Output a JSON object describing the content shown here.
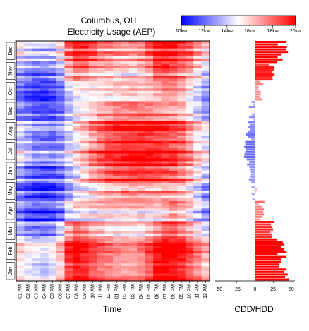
{
  "chart_data": [
    {
      "type": "heatmap",
      "title": "Columbus, OH",
      "subtitle": "Electricity Usage (AEP)",
      "xlabel": "Time",
      "ylabel": "",
      "x_ticks": [
        "01 AM",
        "02 AM",
        "03 AM",
        "04 AM",
        "05 AM",
        "06 AM",
        "07 AM",
        "08 AM",
        "09 AM",
        "10 AM",
        "11 AM",
        "12 PM",
        "01 PM",
        "02 PM",
        "03 PM",
        "04 PM",
        "05 PM",
        "06 PM",
        "07 PM",
        "08 PM",
        "09 PM",
        "10 PM",
        "11 PM",
        "12 AM"
      ],
      "y_ticks": [
        "Jan",
        "Feb",
        "Mar",
        "Apr",
        "May",
        "Jun",
        "Jul",
        "Aug",
        "Sep",
        "Oct",
        "Nov",
        "Dec"
      ],
      "colorbar": {
        "ticks": [
          "10kw",
          "12kw",
          "14kw",
          "16kw",
          "18kw",
          "20kw"
        ],
        "range": [
          10,
          20
        ],
        "low_color": "#0000ff",
        "mid_color": "#ffffff",
        "high_color": "#ff0000"
      },
      "monthly_profile_kw": {
        "Jan": [
          15.0,
          14.2,
          13.8,
          13.6,
          14.0,
          15.4,
          18.2,
          19.2,
          18.8,
          18.0,
          17.4,
          17.0,
          16.8,
          16.6,
          16.6,
          16.9,
          17.8,
          19.4,
          19.6,
          19.2,
          18.6,
          17.8,
          16.8,
          15.8
        ],
        "Feb": [
          15.0,
          14.3,
          13.9,
          13.7,
          14.1,
          15.5,
          18.4,
          19.3,
          18.8,
          18.0,
          17.4,
          16.9,
          16.6,
          16.4,
          16.4,
          16.8,
          17.6,
          18.9,
          19.6,
          19.4,
          18.8,
          18.0,
          16.9,
          15.8
        ],
        "Mar": [
          14.0,
          13.4,
          13.0,
          12.9,
          13.2,
          14.4,
          17.0,
          18.2,
          17.8,
          17.0,
          16.6,
          16.2,
          16.0,
          15.9,
          15.8,
          16.0,
          16.6,
          17.4,
          18.4,
          18.6,
          18.0,
          17.0,
          15.9,
          14.8
        ],
        "Apr": [
          12.6,
          12.0,
          11.7,
          11.6,
          11.8,
          12.6,
          14.4,
          15.4,
          15.6,
          15.6,
          15.8,
          16.0,
          16.0,
          16.0,
          15.9,
          15.8,
          15.8,
          15.9,
          16.4,
          17.0,
          16.6,
          15.6,
          14.4,
          13.4
        ],
        "May": [
          12.2,
          11.6,
          11.2,
          11.0,
          11.2,
          11.8,
          13.2,
          14.4,
          15.0,
          15.6,
          16.2,
          16.6,
          16.8,
          17.0,
          17.0,
          17.0,
          16.9,
          16.8,
          16.8,
          16.8,
          16.4,
          15.4,
          14.2,
          13.0
        ],
        "Jun": [
          13.6,
          12.8,
          12.4,
          12.2,
          12.2,
          12.6,
          13.8,
          15.0,
          16.2,
          17.2,
          18.0,
          18.6,
          19.0,
          19.2,
          19.4,
          19.4,
          19.4,
          19.2,
          18.9,
          18.6,
          18.0,
          17.0,
          15.6,
          14.4
        ],
        "Jul": [
          14.8,
          14.0,
          13.4,
          13.1,
          13.0,
          13.4,
          14.4,
          15.6,
          16.8,
          17.8,
          18.6,
          19.2,
          19.6,
          19.8,
          20.0,
          20.0,
          19.9,
          19.8,
          19.5,
          19.2,
          18.6,
          17.6,
          16.4,
          15.4
        ],
        "Aug": [
          14.6,
          13.8,
          13.2,
          13.0,
          12.9,
          13.4,
          14.6,
          15.6,
          16.6,
          17.6,
          18.4,
          19.0,
          19.4,
          19.6,
          19.8,
          19.8,
          19.7,
          19.6,
          19.3,
          19.0,
          18.5,
          17.4,
          16.2,
          15.2
        ],
        "Sep": [
          12.8,
          12.2,
          11.8,
          11.6,
          11.6,
          12.2,
          13.8,
          14.8,
          15.4,
          16.0,
          16.6,
          17.0,
          17.4,
          17.6,
          17.7,
          17.6,
          17.4,
          17.2,
          17.0,
          16.8,
          16.4,
          15.4,
          14.2,
          13.2
        ],
        "Oct": [
          12.0,
          11.4,
          11.0,
          10.9,
          11.0,
          11.8,
          13.8,
          14.8,
          15.0,
          15.2,
          15.4,
          15.6,
          15.7,
          15.8,
          15.8,
          15.8,
          15.9,
          16.3,
          17.0,
          17.0,
          16.2,
          15.2,
          14.0,
          12.8
        ],
        "Nov": [
          13.4,
          12.8,
          12.4,
          12.2,
          12.5,
          13.6,
          16.4,
          17.6,
          17.4,
          16.8,
          16.4,
          16.2,
          16.0,
          15.9,
          15.9,
          16.2,
          17.0,
          18.4,
          18.6,
          18.2,
          17.6,
          16.8,
          15.6,
          14.4
        ],
        "Dec": [
          14.6,
          13.9,
          13.5,
          13.3,
          13.7,
          15.0,
          17.8,
          19.0,
          18.8,
          18.0,
          17.4,
          17.0,
          16.8,
          16.6,
          16.6,
          16.9,
          17.8,
          19.2,
          19.4,
          19.0,
          18.4,
          17.6,
          16.6,
          15.6
        ]
      }
    },
    {
      "type": "bar",
      "orientation": "horizontal",
      "xlabel": "CDD/HDD",
      "x_ticks": [
        "-50",
        "-25",
        "0",
        "25",
        "50"
      ],
      "xlim": [
        -55,
        55
      ],
      "positive_color": "#ff0000",
      "negative_color": "#0000ff",
      "monthly_degree_days": {
        "Jan": 40,
        "Feb": 36,
        "Mar": 26,
        "Apr": 10,
        "May": -1,
        "Jun": -8,
        "Jul": -12,
        "Aug": -10,
        "Sep": -4,
        "Oct": 8,
        "Nov": 25,
        "Dec": 38
      }
    }
  ]
}
